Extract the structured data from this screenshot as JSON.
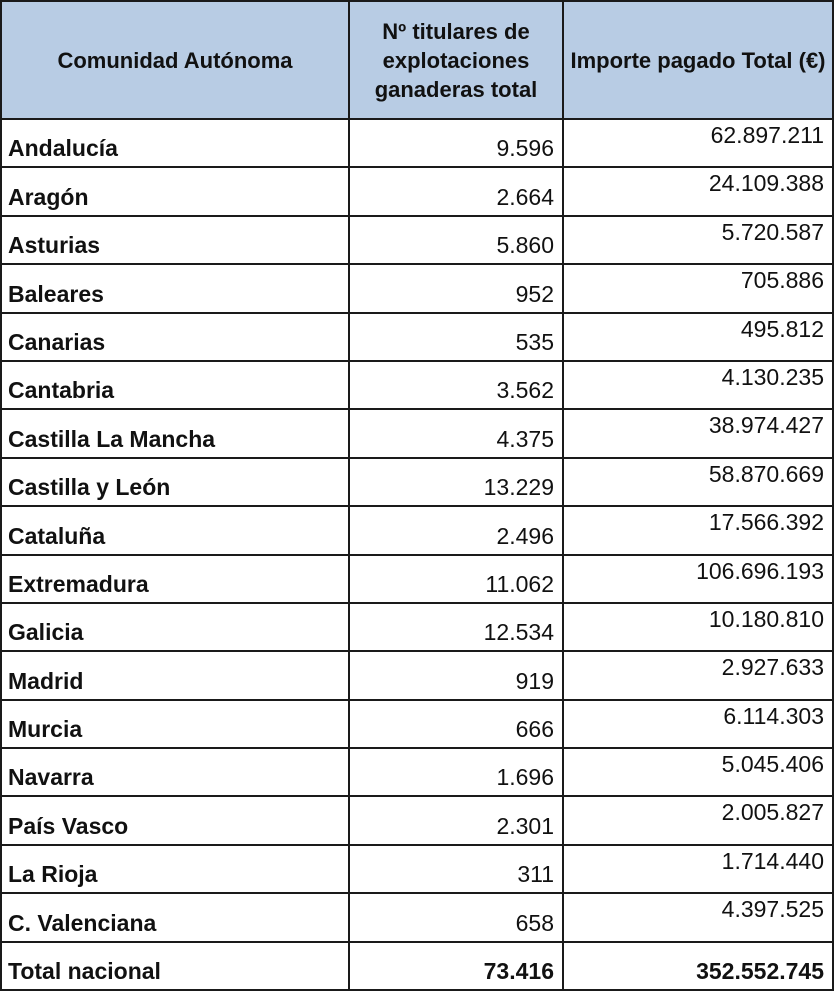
{
  "table": {
    "headers": {
      "community": "Comunidad Autónoma",
      "holders": "Nº titulares de explotaciones ganaderas total",
      "amount": "Importe pagado Total (€)"
    },
    "rows": [
      {
        "community": "Andalucía",
        "holders": "9.596",
        "amount": "62.897.211"
      },
      {
        "community": "Aragón",
        "holders": "2.664",
        "amount": "24.109.388"
      },
      {
        "community": "Asturias",
        "holders": "5.860",
        "amount": "5.720.587"
      },
      {
        "community": "Baleares",
        "holders": "952",
        "amount": "705.886"
      },
      {
        "community": "Canarias",
        "holders": "535",
        "amount": "495.812"
      },
      {
        "community": "Cantabria",
        "holders": "3.562",
        "amount": "4.130.235"
      },
      {
        "community": "Castilla La Mancha",
        "holders": "4.375",
        "amount": "38.974.427"
      },
      {
        "community": "Castilla y León",
        "holders": "13.229",
        "amount": "58.870.669"
      },
      {
        "community": "Cataluña",
        "holders": "2.496",
        "amount": "17.566.392"
      },
      {
        "community": "Extremadura",
        "holders": "11.062",
        "amount": "106.696.193"
      },
      {
        "community": "Galicia",
        "holders": "12.534",
        "amount": "10.180.810"
      },
      {
        "community": "Madrid",
        "holders": "919",
        "amount": "2.927.633"
      },
      {
        "community": "Murcia",
        "holders": "666",
        "amount": "6.114.303"
      },
      {
        "community": "Navarra",
        "holders": "1.696",
        "amount": "5.045.406"
      },
      {
        "community": "País Vasco",
        "holders": "2.301",
        "amount": "2.005.827"
      },
      {
        "community": "La Rioja",
        "holders": "311",
        "amount": "1.714.440"
      },
      {
        "community": "C. Valenciana",
        "holders": "658",
        "amount": "4.397.525"
      }
    ],
    "total": {
      "community": "Total nacional",
      "holders": "73.416",
      "amount": "352.552.745"
    }
  },
  "colors": {
    "header_background": "#b8cce4",
    "border": "#1a1a1a"
  }
}
